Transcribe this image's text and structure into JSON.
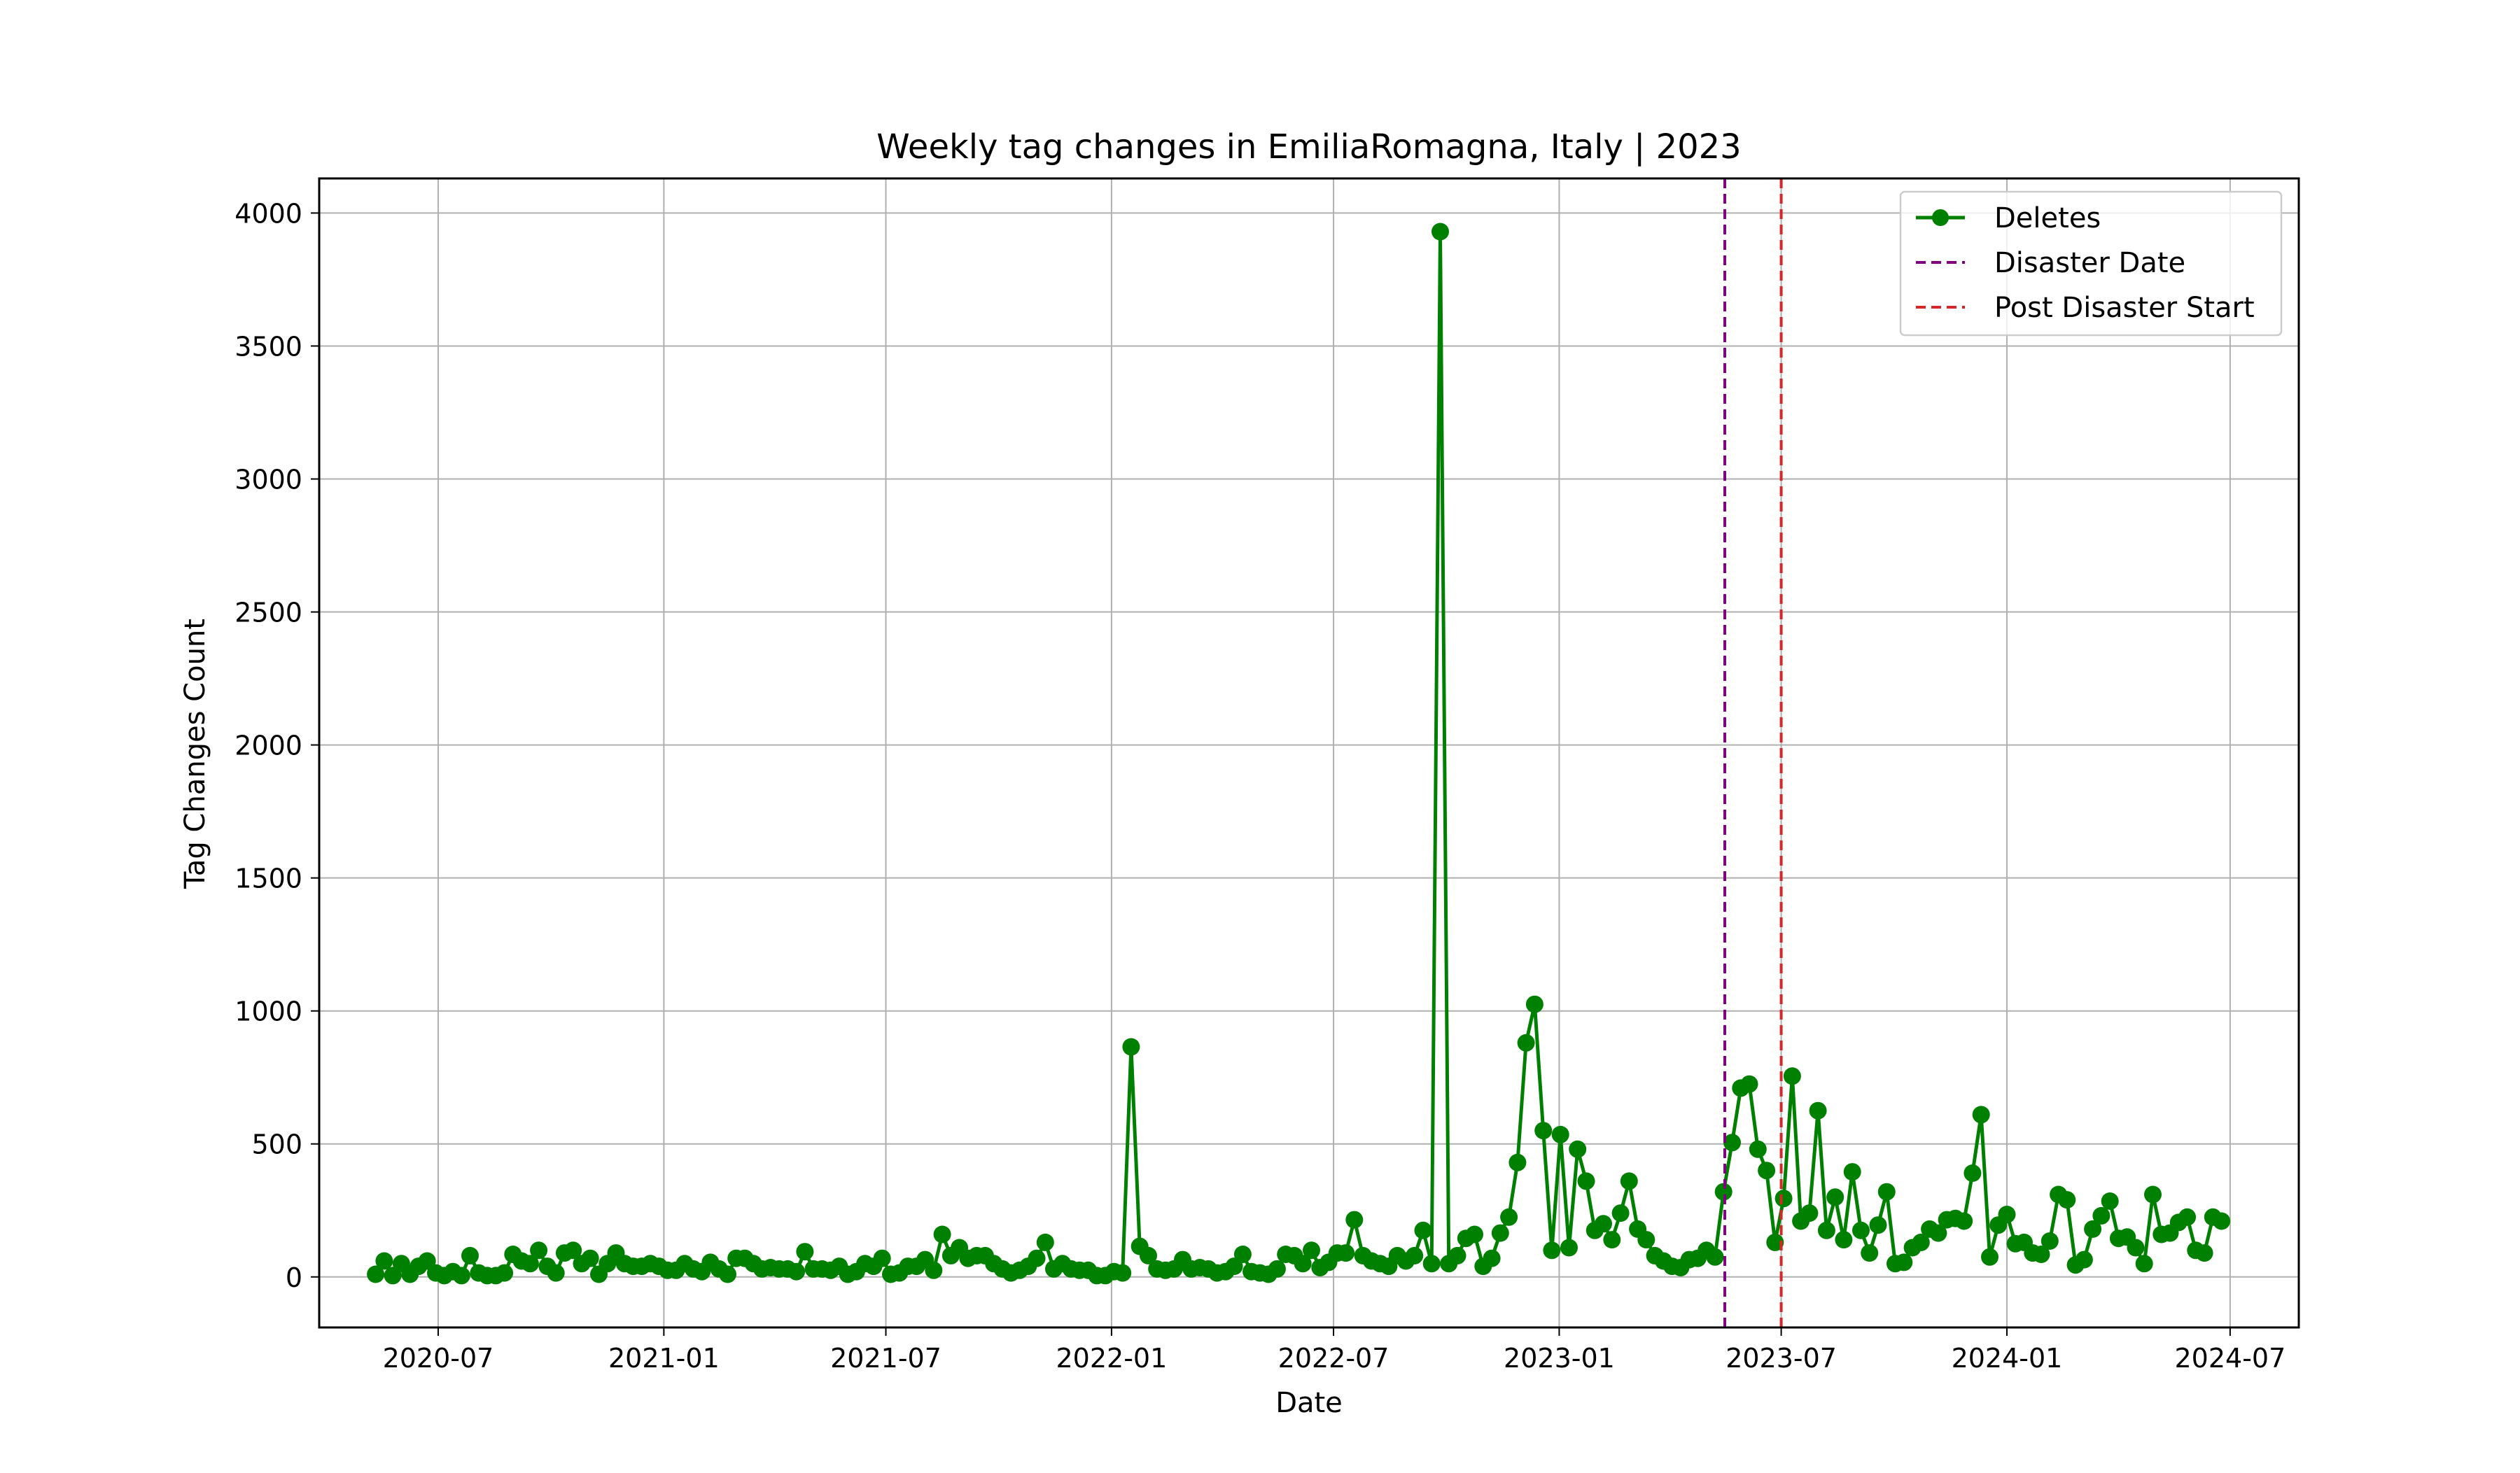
{
  "chart_data": {
    "type": "line",
    "title": "Weekly tag changes in EmiliaRomagna, Italy | 2023",
    "xlabel": "Date",
    "ylabel": "Tag Changes Count",
    "xlim": [
      "2020-03-26",
      "2024-08-26"
    ],
    "ylim": [
      -190,
      4130
    ],
    "x_ticks": [
      "2020-07-01",
      "2021-01-01",
      "2021-07-01",
      "2022-01-01",
      "2022-07-01",
      "2023-01-01",
      "2023-07-01",
      "2024-01-01",
      "2024-07-01"
    ],
    "x_tick_labels": [
      "2020-07",
      "2021-01",
      "2021-07",
      "2022-01",
      "2022-07",
      "2023-01",
      "2023-07",
      "2024-01",
      "2024-07"
    ],
    "y_ticks": [
      0,
      500,
      1000,
      1500,
      2000,
      2500,
      3000,
      3500,
      4000
    ],
    "y_tick_labels": [
      "0",
      "500",
      "1000",
      "1500",
      "2000",
      "2500",
      "3000",
      "3500",
      "4000"
    ],
    "grid": true,
    "legend_position": "top-right",
    "series": [
      {
        "name": "Deletes",
        "color": "#008000",
        "marker": "circle",
        "start_date": "2020-05-11",
        "interval_days": 7,
        "values": [
          10,
          60,
          5,
          50,
          10,
          40,
          60,
          15,
          5,
          20,
          5,
          80,
          15,
          5,
          5,
          15,
          85,
          60,
          50,
          100,
          40,
          15,
          90,
          100,
          50,
          70,
          10,
          50,
          90,
          50,
          40,
          40,
          50,
          40,
          25,
          25,
          50,
          30,
          20,
          55,
          30,
          10,
          70,
          70,
          50,
          30,
          35,
          30,
          30,
          20,
          95,
          30,
          30,
          25,
          40,
          10,
          20,
          50,
          40,
          70,
          10,
          15,
          40,
          40,
          65,
          25,
          160,
          80,
          110,
          70,
          80,
          80,
          50,
          30,
          15,
          25,
          40,
          70,
          130,
          30,
          50,
          30,
          25,
          25,
          5,
          5,
          20,
          15,
          865,
          115,
          80,
          30,
          25,
          30,
          65,
          30,
          35,
          30,
          15,
          20,
          40,
          85,
          20,
          15,
          10,
          30,
          85,
          80,
          50,
          100,
          35,
          55,
          90,
          90,
          215,
          80,
          60,
          50,
          40,
          80,
          60,
          80,
          175,
          50,
          3930,
          50,
          80,
          145,
          160,
          40,
          70,
          165,
          225,
          430,
          880,
          1025,
          550,
          100,
          535,
          110,
          480,
          360,
          175,
          200,
          140,
          240,
          360,
          180,
          140,
          80,
          60,
          40,
          35,
          65,
          70,
          100,
          75,
          320,
          505,
          710,
          725,
          480,
          400,
          130,
          295,
          755,
          210,
          240,
          625,
          175,
          300,
          140,
          395,
          175,
          90,
          195,
          320,
          50,
          55,
          110,
          130,
          180,
          165,
          215,
          220,
          210,
          390,
          610,
          75,
          195,
          235,
          125,
          130,
          90,
          85,
          135,
          310,
          290,
          45,
          65,
          180,
          230,
          285,
          145,
          150,
          110,
          50,
          310,
          160,
          165,
          205,
          225,
          100,
          90,
          225,
          210
        ]
      }
    ],
    "reference_lines": [
      {
        "name": "Disaster Date",
        "date": "2023-05-16",
        "color": "#800080",
        "style": "dashed"
      },
      {
        "name": "Post Disaster Start",
        "date": "2023-07-01",
        "color": "#d62728",
        "style": "dashed"
      }
    ]
  }
}
